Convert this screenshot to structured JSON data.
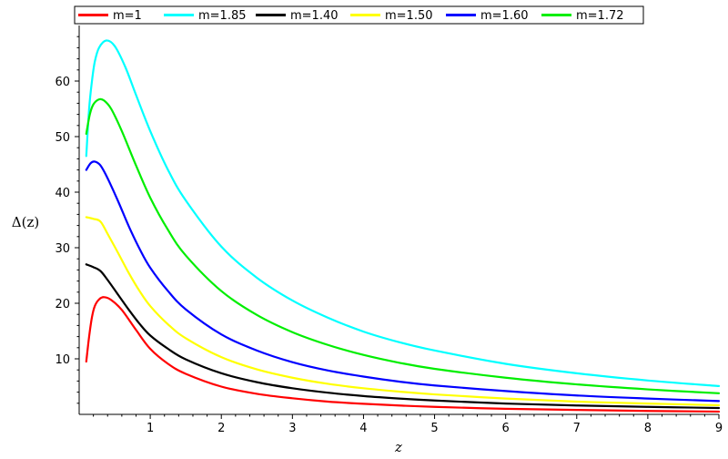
{
  "chart_data": {
    "type": "line",
    "title": "",
    "xlabel": "z",
    "ylabel": "Δ(z)",
    "xlim": [
      0,
      9
    ],
    "ylim": [
      0,
      70
    ],
    "xticks": [
      1,
      2,
      3,
      4,
      5,
      6,
      7,
      8,
      9
    ],
    "yticks": [
      10,
      20,
      30,
      40,
      50,
      60
    ],
    "grid": false,
    "legend_position": "top",
    "series": [
      {
        "name": "m=1",
        "color": "#ff0000",
        "points": [
          [
            0.1,
            9.5
          ],
          [
            0.14,
            14
          ],
          [
            0.18,
            17.5
          ],
          [
            0.22,
            19.5
          ],
          [
            0.28,
            20.7
          ],
          [
            0.35,
            21.1
          ],
          [
            0.45,
            20.6
          ],
          [
            0.6,
            18.8
          ],
          [
            0.8,
            15.2
          ],
          [
            1.0,
            11.8
          ],
          [
            1.25,
            9.1
          ],
          [
            1.5,
            7.3
          ],
          [
            2.0,
            5.0
          ],
          [
            2.5,
            3.7
          ],
          [
            3.0,
            2.9
          ],
          [
            3.5,
            2.3
          ],
          [
            4.0,
            1.9
          ],
          [
            4.5,
            1.6
          ],
          [
            5.0,
            1.35
          ],
          [
            6.0,
            1.0
          ],
          [
            7.0,
            0.8
          ],
          [
            8.0,
            0.62
          ],
          [
            9.0,
            0.5
          ]
        ]
      },
      {
        "name": "m=1.85",
        "color": "#00ffff",
        "points": [
          [
            0.1,
            46.5
          ],
          [
            0.14,
            55
          ],
          [
            0.18,
            60
          ],
          [
            0.22,
            63.5
          ],
          [
            0.28,
            66
          ],
          [
            0.38,
            67.3
          ],
          [
            0.5,
            66.3
          ],
          [
            0.65,
            62.5
          ],
          [
            0.8,
            57.5
          ],
          [
            1.0,
            51
          ],
          [
            1.25,
            44
          ],
          [
            1.5,
            38.5
          ],
          [
            2.0,
            30.2
          ],
          [
            2.5,
            24.6
          ],
          [
            3.0,
            20.5
          ],
          [
            3.5,
            17.4
          ],
          [
            4.0,
            14.9
          ],
          [
            4.5,
            13.0
          ],
          [
            5.0,
            11.5
          ],
          [
            6.0,
            9.1
          ],
          [
            7.0,
            7.4
          ],
          [
            8.0,
            6.1
          ],
          [
            9.0,
            5.1
          ]
        ]
      },
      {
        "name": "m=1.40",
        "color": "#000000",
        "points": [
          [
            0.1,
            27
          ],
          [
            0.2,
            26.5
          ],
          [
            0.3,
            25.8
          ],
          [
            0.4,
            24.2
          ],
          [
            0.55,
            21.5
          ],
          [
            0.7,
            18.8
          ],
          [
            0.85,
            16.3
          ],
          [
            1.0,
            14.2
          ],
          [
            1.25,
            11.8
          ],
          [
            1.5,
            9.9
          ],
          [
            2.0,
            7.4
          ],
          [
            2.5,
            5.8
          ],
          [
            3.0,
            4.7
          ],
          [
            3.5,
            3.9
          ],
          [
            4.0,
            3.3
          ],
          [
            4.5,
            2.85
          ],
          [
            5.0,
            2.5
          ],
          [
            6.0,
            1.95
          ],
          [
            7.0,
            1.6
          ],
          [
            8.0,
            1.35
          ],
          [
            9.0,
            1.15
          ]
        ]
      },
      {
        "name": "m=1.50",
        "color": "#ffff00",
        "points": [
          [
            0.1,
            35.5
          ],
          [
            0.2,
            35.2
          ],
          [
            0.3,
            34.7
          ],
          [
            0.4,
            32.5
          ],
          [
            0.55,
            29
          ],
          [
            0.7,
            25.4
          ],
          [
            0.85,
            22.2
          ],
          [
            1.0,
            19.5
          ],
          [
            1.25,
            16.2
          ],
          [
            1.5,
            13.7
          ],
          [
            2.0,
            10.3
          ],
          [
            2.5,
            8.1
          ],
          [
            3.0,
            6.6
          ],
          [
            3.5,
            5.5
          ],
          [
            4.0,
            4.7
          ],
          [
            4.5,
            4.1
          ],
          [
            5.0,
            3.6
          ],
          [
            6.0,
            2.85
          ],
          [
            7.0,
            2.3
          ],
          [
            8.0,
            1.95
          ],
          [
            9.0,
            1.65
          ]
        ]
      },
      {
        "name": "m=1.60",
        "color": "#0000ff",
        "points": [
          [
            0.1,
            44
          ],
          [
            0.16,
            45.2
          ],
          [
            0.22,
            45.5
          ],
          [
            0.3,
            44.8
          ],
          [
            0.4,
            42.5
          ],
          [
            0.55,
            38.3
          ],
          [
            0.7,
            33.8
          ],
          [
            0.85,
            29.8
          ],
          [
            1.0,
            26.4
          ],
          [
            1.25,
            22.2
          ],
          [
            1.5,
            18.9
          ],
          [
            2.0,
            14.4
          ],
          [
            2.5,
            11.5
          ],
          [
            3.0,
            9.4
          ],
          [
            3.5,
            7.9
          ],
          [
            4.0,
            6.8
          ],
          [
            4.5,
            5.9
          ],
          [
            5.0,
            5.2
          ],
          [
            6.0,
            4.2
          ],
          [
            7.0,
            3.4
          ],
          [
            8.0,
            2.85
          ],
          [
            9.0,
            2.4
          ]
        ]
      },
      {
        "name": "m=1.72",
        "color": "#00ee00",
        "points": [
          [
            0.1,
            50.5
          ],
          [
            0.15,
            54
          ],
          [
            0.2,
            55.8
          ],
          [
            0.28,
            56.7
          ],
          [
            0.35,
            56.5
          ],
          [
            0.45,
            55
          ],
          [
            0.6,
            51
          ],
          [
            0.8,
            44.8
          ],
          [
            1.0,
            39
          ],
          [
            1.25,
            33.2
          ],
          [
            1.5,
            28.6
          ],
          [
            2.0,
            22.2
          ],
          [
            2.5,
            17.9
          ],
          [
            3.0,
            14.8
          ],
          [
            3.5,
            12.5
          ],
          [
            4.0,
            10.7
          ],
          [
            4.5,
            9.3
          ],
          [
            5.0,
            8.2
          ],
          [
            6.0,
            6.6
          ],
          [
            7.0,
            5.4
          ],
          [
            8.0,
            4.5
          ],
          [
            9.0,
            3.8
          ]
        ]
      }
    ]
  }
}
